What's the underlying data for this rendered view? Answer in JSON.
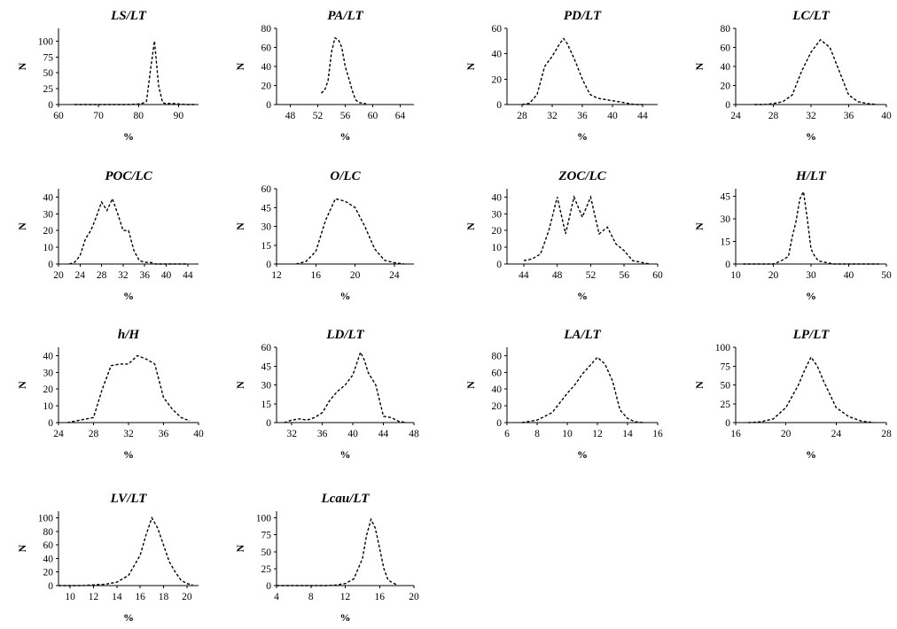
{
  "chart_data": [
    {
      "type": "line",
      "title": "LS/LT",
      "xlabel": "%",
      "ylabel": "N",
      "xlim": [
        60,
        95
      ],
      "ylim": [
        0,
        120
      ],
      "xticks": [
        60,
        70,
        80,
        90
      ],
      "yticks": [
        0,
        25,
        50,
        75,
        100
      ],
      "x": [
        64,
        66,
        68,
        70,
        72,
        74,
        76,
        78,
        80,
        81,
        82,
        83,
        84,
        85,
        86,
        87,
        88,
        90,
        92,
        94
      ],
      "values": [
        0,
        0,
        0,
        0,
        0,
        0,
        0,
        0,
        1,
        2,
        5,
        55,
        100,
        30,
        3,
        1,
        2,
        1,
        0,
        0
      ]
    },
    {
      "type": "line",
      "title": "PA/LT",
      "xlabel": "%",
      "ylabel": "N",
      "xlim": [
        46,
        66
      ],
      "ylim": [
        0,
        80
      ],
      "xticks": [
        48,
        52,
        56,
        60,
        64
      ],
      "yticks": [
        0,
        20,
        40,
        60,
        80
      ],
      "x": [
        52.5,
        53,
        53.5,
        54,
        54.5,
        55,
        55.5,
        56,
        56.5,
        57,
        57.5,
        58,
        59
      ],
      "values": [
        12,
        15,
        25,
        55,
        70,
        68,
        60,
        40,
        28,
        15,
        5,
        2,
        1
      ]
    },
    {
      "type": "line",
      "title": "PD/LT",
      "xlabel": "%",
      "ylabel": "N",
      "xlim": [
        26,
        46
      ],
      "ylim": [
        0,
        60
      ],
      "xticks": [
        28,
        32,
        36,
        40,
        44
      ],
      "yticks": [
        0,
        20,
        40,
        60
      ],
      "x": [
        28,
        29,
        30,
        31,
        32,
        33,
        33.5,
        34,
        35,
        36,
        37,
        38,
        39,
        40,
        41,
        42,
        43,
        44
      ],
      "values": [
        0,
        1,
        8,
        30,
        38,
        48,
        52,
        48,
        35,
        20,
        8,
        5,
        4,
        3,
        2,
        1,
        0,
        0
      ]
    },
    {
      "type": "line",
      "title": "LC/LT",
      "xlabel": "%",
      "ylabel": "N",
      "xlim": [
        24,
        40
      ],
      "ylim": [
        0,
        80
      ],
      "xticks": [
        24,
        28,
        32,
        36,
        40
      ],
      "yticks": [
        0,
        20,
        40,
        60,
        80
      ],
      "x": [
        26,
        27,
        28,
        29,
        30,
        31,
        32,
        33,
        34,
        35,
        36,
        37,
        38,
        39
      ],
      "values": [
        0,
        0,
        1,
        3,
        10,
        35,
        55,
        68,
        60,
        35,
        10,
        3,
        1,
        0
      ]
    },
    {
      "type": "line",
      "title": "POC/LC",
      "xlabel": "%",
      "ylabel": "N",
      "xlim": [
        20,
        46
      ],
      "ylim": [
        0,
        45
      ],
      "xticks": [
        20,
        24,
        28,
        32,
        36,
        40,
        44
      ],
      "yticks": [
        0,
        10,
        20,
        30,
        40
      ],
      "x": [
        22,
        23,
        24,
        25,
        26,
        27,
        28,
        29,
        30,
        31,
        32,
        33,
        34,
        35,
        36,
        37,
        38,
        40,
        42,
        44
      ],
      "values": [
        0,
        1,
        5,
        15,
        20,
        28,
        37,
        32,
        39,
        30,
        20,
        20,
        8,
        2,
        1,
        1,
        0,
        0,
        0,
        0
      ]
    },
    {
      "type": "line",
      "title": "O/LC",
      "xlabel": "%",
      "ylabel": "N",
      "xlim": [
        12,
        26
      ],
      "ylim": [
        0,
        60
      ],
      "xticks": [
        12,
        16,
        20,
        24
      ],
      "yticks": [
        0,
        15,
        30,
        45,
        60
      ],
      "x": [
        14,
        15,
        16,
        17,
        18,
        19,
        20,
        21,
        22,
        23,
        24,
        25
      ],
      "values": [
        0,
        2,
        10,
        35,
        52,
        50,
        45,
        30,
        12,
        3,
        1,
        0
      ]
    },
    {
      "type": "line",
      "title": "ZOC/LC",
      "xlabel": "%",
      "ylabel": "N",
      "xlim": [
        42,
        60
      ],
      "ylim": [
        0,
        45
      ],
      "xticks": [
        44,
        48,
        52,
        56,
        60
      ],
      "yticks": [
        0,
        10,
        20,
        30,
        40
      ],
      "x": [
        44,
        45,
        46,
        47,
        48,
        49,
        50,
        51,
        52,
        53,
        54,
        55,
        56,
        57,
        58,
        59
      ],
      "values": [
        2,
        3,
        6,
        20,
        40,
        18,
        40,
        28,
        40,
        18,
        22,
        12,
        8,
        2,
        1,
        0
      ]
    },
    {
      "type": "line",
      "title": "H/LT",
      "xlabel": "%",
      "ylabel": "N",
      "xlim": [
        10,
        50
      ],
      "ylim": [
        0,
        50
      ],
      "xticks": [
        10,
        20,
        30,
        40,
        50
      ],
      "yticks": [
        0,
        15,
        30,
        45
      ],
      "x": [
        12,
        16,
        20,
        22,
        24,
        25,
        26,
        27,
        28,
        29,
        30,
        31,
        32,
        34,
        36,
        40,
        44,
        48
      ],
      "values": [
        0,
        0,
        0,
        2,
        5,
        18,
        28,
        43,
        48,
        30,
        10,
        5,
        2,
        1,
        0,
        0,
        0,
        0
      ]
    },
    {
      "type": "line",
      "title": "h/H",
      "xlabel": "%",
      "ylabel": "N",
      "xlim": [
        24,
        40
      ],
      "ylim": [
        0,
        45
      ],
      "xticks": [
        24,
        28,
        32,
        36,
        40
      ],
      "yticks": [
        0,
        10,
        20,
        30,
        40
      ],
      "x": [
        25,
        26,
        27,
        28,
        29,
        30,
        31,
        32,
        33,
        34,
        35,
        36,
        37,
        38,
        39
      ],
      "values": [
        0,
        1,
        2,
        3,
        20,
        34,
        35,
        35,
        40,
        38,
        35,
        15,
        8,
        3,
        1
      ]
    },
    {
      "type": "line",
      "title": "LD/LT",
      "xlabel": "%",
      "ylabel": "N",
      "xlim": [
        30,
        48
      ],
      "ylim": [
        0,
        60
      ],
      "xticks": [
        32,
        36,
        40,
        44,
        48
      ],
      "yticks": [
        0,
        15,
        30,
        45,
        60
      ],
      "x": [
        31,
        32,
        33,
        34,
        35,
        36,
        37,
        38,
        39,
        40,
        41,
        41.5,
        42,
        43,
        44,
        45,
        46,
        47
      ],
      "values": [
        0,
        2,
        3,
        2,
        4,
        8,
        18,
        25,
        30,
        38,
        56,
        50,
        40,
        30,
        5,
        4,
        1,
        0
      ]
    },
    {
      "type": "line",
      "title": "LA/LT",
      "xlabel": "%",
      "ylabel": "N",
      "xlim": [
        6,
        16
      ],
      "ylim": [
        0,
        90
      ],
      "xticks": [
        6,
        8,
        10,
        12,
        14,
        16
      ],
      "yticks": [
        0,
        20,
        40,
        60,
        80
      ],
      "x": [
        7,
        8,
        9,
        10,
        10.5,
        11,
        11.5,
        12,
        12.5,
        13,
        13.5,
        14,
        14.5,
        15
      ],
      "values": [
        0,
        3,
        12,
        35,
        45,
        58,
        68,
        78,
        70,
        50,
        15,
        5,
        1,
        0
      ]
    },
    {
      "type": "line",
      "title": "LP/LT",
      "xlabel": "%",
      "ylabel": "N",
      "xlim": [
        16,
        28
      ],
      "ylim": [
        0,
        100
      ],
      "xticks": [
        16,
        20,
        24,
        28
      ],
      "yticks": [
        0,
        25,
        50,
        75,
        100
      ],
      "x": [
        17,
        18,
        19,
        20,
        21,
        21.5,
        22,
        22.5,
        23,
        24,
        25,
        26,
        27
      ],
      "values": [
        0,
        1,
        5,
        20,
        50,
        70,
        87,
        75,
        55,
        20,
        8,
        2,
        0
      ]
    },
    {
      "type": "line",
      "title": "LV/LT",
      "xlabel": "%",
      "ylabel": "N",
      "xlim": [
        9,
        21
      ],
      "ylim": [
        0,
        110
      ],
      "xticks": [
        10,
        12,
        14,
        16,
        18,
        20
      ],
      "yticks": [
        0,
        20,
        40,
        60,
        80,
        100
      ],
      "x": [
        9,
        10,
        11,
        12,
        13,
        14,
        15,
        16,
        16.5,
        17,
        17.5,
        18,
        18.5,
        19,
        19.5,
        20,
        20.5
      ],
      "values": [
        0,
        0,
        0,
        1,
        2,
        5,
        15,
        45,
        75,
        100,
        85,
        60,
        35,
        20,
        8,
        3,
        1
      ]
    },
    {
      "type": "line",
      "title": "Lcau/LT",
      "xlabel": "%",
      "ylabel": "N",
      "xlim": [
        4,
        20
      ],
      "ylim": [
        0,
        110
      ],
      "xticks": [
        4,
        8,
        12,
        16,
        20
      ],
      "yticks": [
        0,
        25,
        50,
        75,
        100
      ],
      "x": [
        4,
        6,
        8,
        10,
        11,
        12,
        13,
        14,
        14.5,
        15,
        15.5,
        16,
        16.5,
        17,
        18
      ],
      "values": [
        0,
        0,
        0,
        0,
        1,
        3,
        10,
        40,
        75,
        98,
        85,
        55,
        25,
        8,
        1
      ]
    }
  ]
}
